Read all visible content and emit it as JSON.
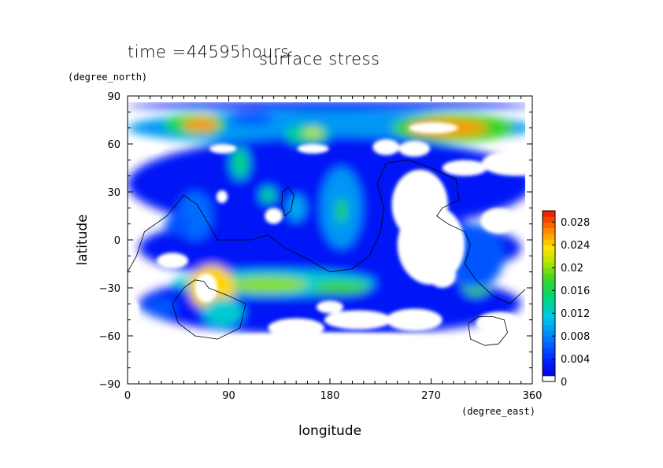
{
  "chart_data": {
    "type": "heatmap",
    "title": "surface stress",
    "time_label": "time =44595hours",
    "xlabel": "longitude",
    "ylabel": "latitude",
    "x_unit": "(degree_east)",
    "y_unit": "(degree_north)",
    "xlim": [
      0,
      360
    ],
    "ylim": [
      -90,
      90
    ],
    "x_ticks": [
      "0",
      "90",
      "180",
      "270",
      "360"
    ],
    "y_ticks": [
      "90",
      "60",
      "30",
      "0",
      "−30",
      "−60",
      "−90"
    ],
    "colorbar": {
      "range": [
        0,
        0.03
      ],
      "tick_labels": [
        "0.028",
        "0.024",
        "0.02",
        "0.016",
        "0.012",
        "0.008",
        "0.004",
        "0"
      ],
      "tick_values": [
        0.028,
        0.024,
        0.02,
        0.016,
        0.012,
        0.008,
        0.004,
        0
      ]
    },
    "field_blobs": [
      {
        "lon": 180,
        "lat": 70,
        "rx": 180,
        "ry": 11,
        "value": 0.009
      },
      {
        "lon": 180,
        "lat": 84,
        "rx": 180,
        "ry": 3,
        "value": 0.003
      },
      {
        "lon": 180,
        "lat": 35,
        "rx": 180,
        "ry": 30,
        "value": 0.003
      },
      {
        "lon": 180,
        "lat": -5,
        "rx": 170,
        "ry": 22,
        "value": 0.003
      },
      {
        "lon": 180,
        "lat": -40,
        "rx": 170,
        "ry": 20,
        "value": 0.003
      },
      {
        "lon": 60,
        "lat": 72,
        "rx": 28,
        "ry": 7,
        "value": 0.016
      },
      {
        "lon": 65,
        "lat": 72,
        "rx": 16,
        "ry": 4,
        "value": 0.026
      },
      {
        "lon": 160,
        "lat": 66,
        "rx": 20,
        "ry": 6,
        "value": 0.014
      },
      {
        "lon": 165,
        "lat": 67,
        "rx": 8,
        "ry": 2.5,
        "value": 0.022
      },
      {
        "lon": 290,
        "lat": 70,
        "rx": 55,
        "ry": 9,
        "value": 0.018
      },
      {
        "lon": 285,
        "lat": 70,
        "rx": 35,
        "ry": 5,
        "value": 0.026
      },
      {
        "lon": 110,
        "lat": 76,
        "rx": 20,
        "ry": 4,
        "value": 0.006
      },
      {
        "lon": 100,
        "lat": 48,
        "rx": 8,
        "ry": 10,
        "value": 0.014
      },
      {
        "lon": 125,
        "lat": 28,
        "rx": 7,
        "ry": 5,
        "value": 0.014
      },
      {
        "lon": 190,
        "lat": 20,
        "rx": 18,
        "ry": 25,
        "value": 0.009
      },
      {
        "lon": 190,
        "lat": 18,
        "rx": 5,
        "ry": 8,
        "value": 0.016
      },
      {
        "lon": 150,
        "lat": 20,
        "rx": 8,
        "ry": 8,
        "value": 0.01
      },
      {
        "lon": 60,
        "lat": 15,
        "rx": 15,
        "ry": 15,
        "value": 0.007
      },
      {
        "lon": 130,
        "lat": -27,
        "rx": 90,
        "ry": 8,
        "value": 0.012
      },
      {
        "lon": 125,
        "lat": -28,
        "rx": 35,
        "ry": 5,
        "value": 0.02
      },
      {
        "lon": 75,
        "lat": -30,
        "rx": 20,
        "ry": 14,
        "value": 0.024
      },
      {
        "lon": 190,
        "lat": -30,
        "rx": 25,
        "ry": 4,
        "value": 0.018
      },
      {
        "lon": 85,
        "lat": -45,
        "rx": 18,
        "ry": 9,
        "value": 0.012
      },
      {
        "lon": 310,
        "lat": -28,
        "rx": 12,
        "ry": 7,
        "value": 0.018
      },
      {
        "lon": 310,
        "lat": -10,
        "rx": 25,
        "ry": 20,
        "value": 0.006
      },
      {
        "lon": 45,
        "lat": 10,
        "rx": 12,
        "ry": 6,
        "value": 0.006
      },
      {
        "lon": 30,
        "lat": -42,
        "rx": 14,
        "ry": 6,
        "value": 0.006
      }
    ],
    "holes": [
      {
        "lon": 272,
        "lat": 70,
        "rx": 22,
        "ry": 3.5
      },
      {
        "lon": 70,
        "lat": -30,
        "rx": 10,
        "ry": 9
      },
      {
        "lon": 345,
        "lat": 48,
        "rx": 30,
        "ry": 8
      },
      {
        "lon": 300,
        "lat": 45,
        "rx": 20,
        "ry": 5
      },
      {
        "lon": 260,
        "lat": 22,
        "rx": 25,
        "ry": 22
      },
      {
        "lon": 270,
        "lat": -3,
        "rx": 30,
        "ry": 25
      },
      {
        "lon": 330,
        "lat": 12,
        "rx": 16,
        "ry": 8
      },
      {
        "lon": 230,
        "lat": 58,
        "rx": 12,
        "ry": 5
      },
      {
        "lon": 255,
        "lat": 57,
        "rx": 14,
        "ry": 5
      },
      {
        "lon": 40,
        "lat": -13,
        "rx": 14,
        "ry": 5
      },
      {
        "lon": 205,
        "lat": -50,
        "rx": 30,
        "ry": 6
      },
      {
        "lon": 255,
        "lat": -50,
        "rx": 25,
        "ry": 7
      },
      {
        "lon": 150,
        "lat": -55,
        "rx": 25,
        "ry": 6
      },
      {
        "lon": 330,
        "lat": -52,
        "rx": 20,
        "ry": 7
      },
      {
        "lon": 178,
        "lat": -68,
        "rx": 178,
        "ry": 10
      },
      {
        "lon": 5,
        "lat": -45,
        "rx": 5,
        "ry": 8
      },
      {
        "lon": 280,
        "lat": -22,
        "rx": 12,
        "ry": 8
      },
      {
        "lon": 165,
        "lat": 57,
        "rx": 14,
        "ry": 3
      },
      {
        "lon": 85,
        "lat": 57,
        "rx": 12,
        "ry": 3
      },
      {
        "lon": 20,
        "lat": 57,
        "rx": 12,
        "ry": 3
      },
      {
        "lon": 130,
        "lat": 15,
        "rx": 8,
        "ry": 5
      },
      {
        "lon": 84,
        "lat": 27,
        "rx": 5,
        "ry": 4
      },
      {
        "lon": 180,
        "lat": -42,
        "rx": 12,
        "ry": 4
      }
    ],
    "coastlines": [
      [
        [
          0,
          -20
        ],
        [
          8,
          -10
        ],
        [
          15,
          5
        ],
        [
          35,
          15
        ],
        [
          50,
          28
        ],
        [
          62,
          22
        ],
        [
          72,
          10
        ],
        [
          80,
          0
        ],
        [
          110,
          0
        ],
        [
          125,
          3
        ],
        [
          140,
          -5
        ],
        [
          160,
          -12
        ],
        [
          180,
          -20
        ],
        [
          200,
          -18
        ],
        [
          215,
          -10
        ],
        [
          225,
          5
        ],
        [
          228,
          20
        ],
        [
          222,
          35
        ],
        [
          230,
          48
        ],
        [
          250,
          50
        ],
        [
          270,
          45
        ],
        [
          292,
          38
        ],
        [
          295,
          25
        ],
        [
          280,
          20
        ],
        [
          275,
          15
        ],
        [
          285,
          10
        ],
        [
          300,
          5
        ],
        [
          305,
          -3
        ],
        [
          300,
          -15
        ],
        [
          310,
          -25
        ],
        [
          325,
          -35
        ],
        [
          340,
          -40
        ],
        [
          355,
          -30
        ],
        [
          360,
          -18
        ]
      ],
      [
        [
          72,
          -30
        ],
        [
          90,
          -35
        ],
        [
          105,
          -40
        ],
        [
          100,
          -55
        ],
        [
          80,
          -62
        ],
        [
          60,
          -60
        ],
        [
          45,
          -52
        ],
        [
          40,
          -40
        ],
        [
          50,
          -30
        ],
        [
          60,
          -25
        ],
        [
          68,
          -26
        ],
        [
          72,
          -30
        ]
      ],
      [
        [
          325,
          -48
        ],
        [
          335,
          -50
        ],
        [
          338,
          -58
        ],
        [
          330,
          -65
        ],
        [
          318,
          -66
        ],
        [
          305,
          -62
        ],
        [
          303,
          -52
        ],
        [
          312,
          -48
        ],
        [
          325,
          -48
        ]
      ],
      [
        [
          143,
          33
        ],
        [
          148,
          28
        ],
        [
          145,
          18
        ],
        [
          140,
          15
        ],
        [
          137,
          22
        ],
        [
          138,
          30
        ],
        [
          143,
          33
        ]
      ]
    ]
  }
}
